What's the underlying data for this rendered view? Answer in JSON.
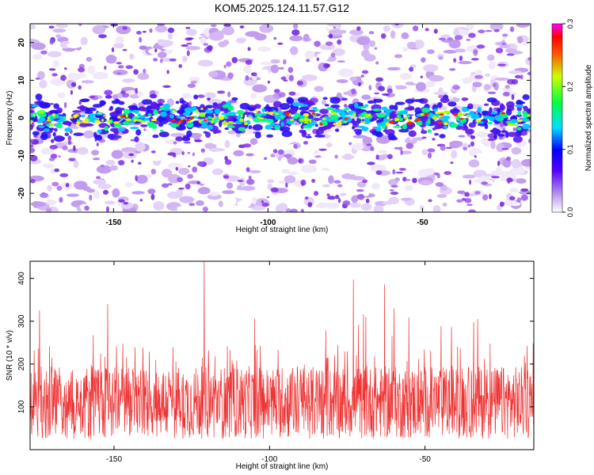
{
  "chart_data": [
    {
      "type": "heatmap",
      "title": "KOM5.2025.124.11.57.G12",
      "xlabel": "Height of straight line (km)",
      "ylabel": "Frequency (Hz)",
      "xlim": [
        -177,
        -15
      ],
      "ylim": [
        -25,
        25
      ],
      "x_ticks": [
        -150,
        -100,
        -50
      ],
      "y_ticks": [
        -20,
        -10,
        0,
        10,
        20
      ],
      "band_center_hz": 0,
      "band_halfwidth_hz": 5,
      "colorbar": {
        "label": "Normalized spectral amplitude",
        "range": [
          0.0,
          0.3
        ],
        "ticks": [
          0.0,
          0.1,
          0.2,
          0.3
        ],
        "colors": [
          "#ffffff",
          "#8a2be2",
          "#0000ff",
          "#00ffff",
          "#00ff00",
          "#ffff00",
          "#ff0000",
          "#ff00ff"
        ]
      }
    },
    {
      "type": "line",
      "xlabel": "Height of straight line (km)",
      "ylabel": "SNR (10 * v/v)",
      "xlim": [
        -177,
        -15
      ],
      "ylim": [
        0,
        440
      ],
      "x_ticks": [
        -150,
        -100,
        -50
      ],
      "y_ticks": [
        100,
        200,
        300,
        400
      ],
      "color": "#ee3333",
      "baseline": 110,
      "spikes": [
        {
          "x": -121,
          "y": 440
        },
        {
          "x": -73,
          "y": 397
        },
        {
          "x": -63,
          "y": 386
        },
        {
          "x": -152,
          "y": 340
        },
        {
          "x": -174,
          "y": 325
        },
        {
          "x": -60,
          "y": 330
        },
        {
          "x": -69,
          "y": 310
        },
        {
          "x": -33,
          "y": 305
        }
      ]
    }
  ]
}
